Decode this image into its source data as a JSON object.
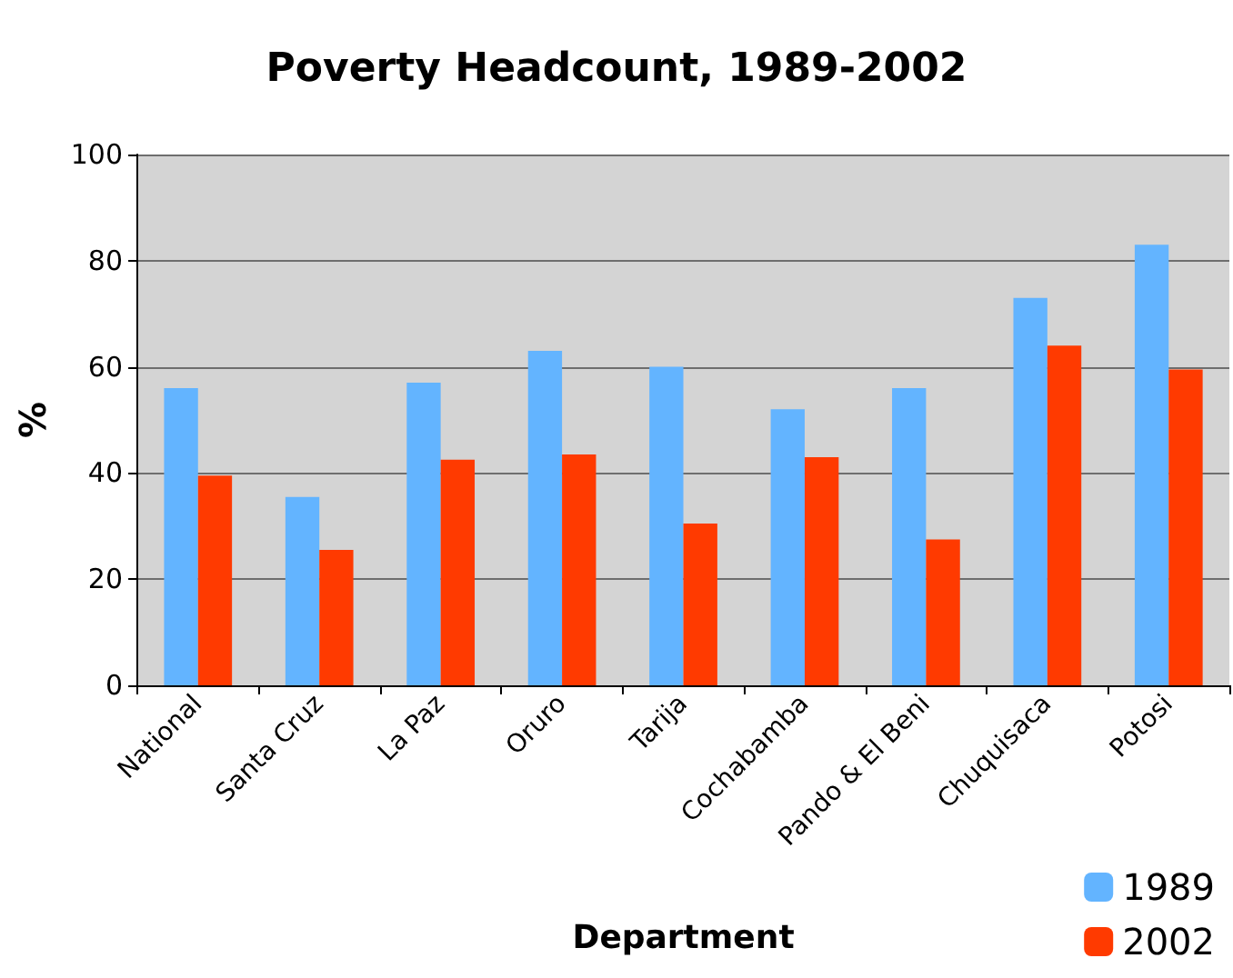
{
  "chart_data": {
    "type": "bar",
    "title": "Poverty Headcount, 1989-2002",
    "xlabel": "Department",
    "ylabel": "%",
    "categories": [
      "National",
      "Santa Cruz",
      "La Paz",
      "Oruro",
      "Tarija",
      "Cochabamba",
      "Pando & El Beni",
      "Chuquisaca",
      "Potosi"
    ],
    "series": [
      {
        "name": "1989",
        "color": "#63b4ff",
        "values": [
          56,
          35.5,
          57,
          63,
          60,
          52,
          56,
          73,
          83
        ]
      },
      {
        "name": "2002",
        "color": "#ff3a00",
        "values": [
          39.5,
          25.5,
          42.5,
          43.5,
          30.5,
          43,
          27.5,
          64,
          59.5
        ]
      }
    ],
    "ylim": [
      0,
      100
    ],
    "yticks": [
      0,
      20,
      40,
      60,
      80,
      100
    ],
    "grid": "y",
    "legend": "bottom right"
  }
}
